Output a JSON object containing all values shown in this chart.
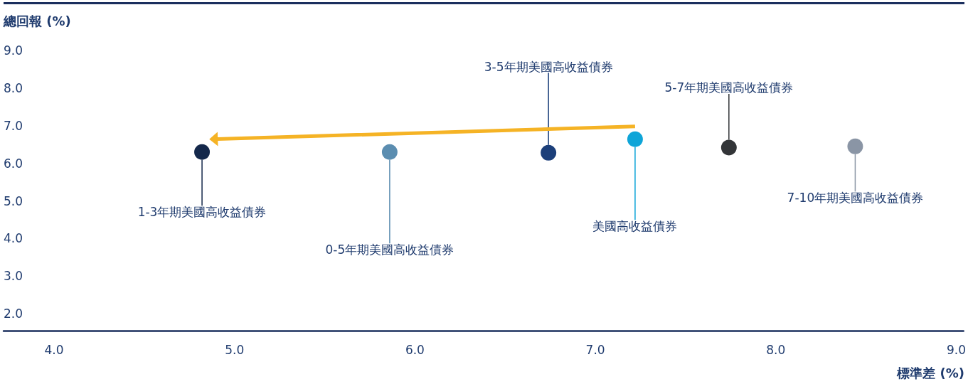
{
  "chart_data": {
    "type": "scatter",
    "xlabel": "標準差 (%)",
    "ylabel": "總回報 (%)",
    "xlim": [
      3.72,
      9.04
    ],
    "ylim": [
      1.55,
      9.0
    ],
    "xticks": [
      {
        "value": 4,
        "label": "4.0"
      },
      {
        "value": 5,
        "label": "5.0"
      },
      {
        "value": 6,
        "label": "6.0"
      },
      {
        "value": 7,
        "label": "7.0"
      },
      {
        "value": 8,
        "label": "8.0"
      },
      {
        "value": 9,
        "label": "9.0"
      }
    ],
    "yticks": [
      {
        "value": 2,
        "label": "2.0"
      },
      {
        "value": 3,
        "label": "3.0"
      },
      {
        "value": 4,
        "label": "4.0"
      },
      {
        "value": 5,
        "label": "5.0"
      },
      {
        "value": 6,
        "label": "6.0"
      },
      {
        "value": 7,
        "label": "7.0"
      },
      {
        "value": 8,
        "label": "8.0"
      },
      {
        "value": 9,
        "label": "9.0"
      }
    ],
    "grid": false,
    "legend": false,
    "marker": "circle",
    "series": [
      {
        "name": "1-3年期美國高收益債券",
        "color": "#14284b",
        "x": [
          4.82
        ],
        "values": [
          6.3
        ]
      },
      {
        "name": "0-5年期美國高收益債券",
        "color": "#5b8db0",
        "x": [
          5.86
        ],
        "values": [
          6.3
        ]
      },
      {
        "name": "3-5年期美國高收益債券",
        "color": "#1c3f7a",
        "x": [
          6.74
        ],
        "values": [
          6.28
        ]
      },
      {
        "name": "美國高收益債券",
        "color": "#0ea5d8",
        "x": [
          7.22
        ],
        "values": [
          6.64
        ]
      },
      {
        "name": "5-7年期美國高收益債券",
        "color": "#333538",
        "x": [
          7.74
        ],
        "values": [
          6.42
        ]
      },
      {
        "name": "7-10年期美國高收益債券",
        "color": "#8a95a5",
        "x": [
          8.44
        ],
        "values": [
          6.45
        ]
      }
    ]
  }
}
